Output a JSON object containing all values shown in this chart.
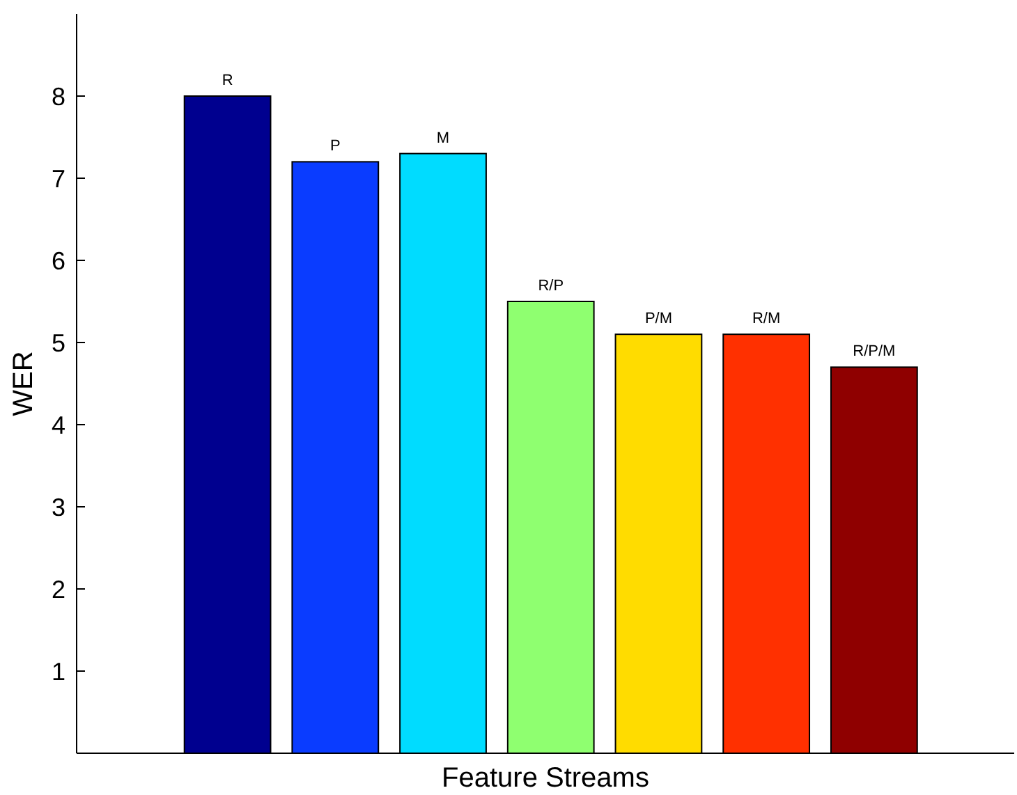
{
  "chart_data": {
    "type": "bar",
    "xlabel": "Feature Streams",
    "ylabel": "WER",
    "categories": [
      "R",
      "P",
      "M",
      "R/P",
      "P/M",
      "R/M",
      "R/P/M"
    ],
    "values": [
      8.0,
      7.2,
      7.3,
      5.5,
      5.1,
      5.1,
      4.7
    ],
    "colors": [
      "#00008f",
      "#0a3cff",
      "#00dcff",
      "#8fff70",
      "#ffdc00",
      "#ff3000",
      "#8f0000"
    ],
    "ylim": [
      0,
      9
    ],
    "yticks": [
      1,
      2,
      3,
      4,
      5,
      6,
      7,
      8
    ],
    "tick_labels": "y",
    "grid": false
  }
}
